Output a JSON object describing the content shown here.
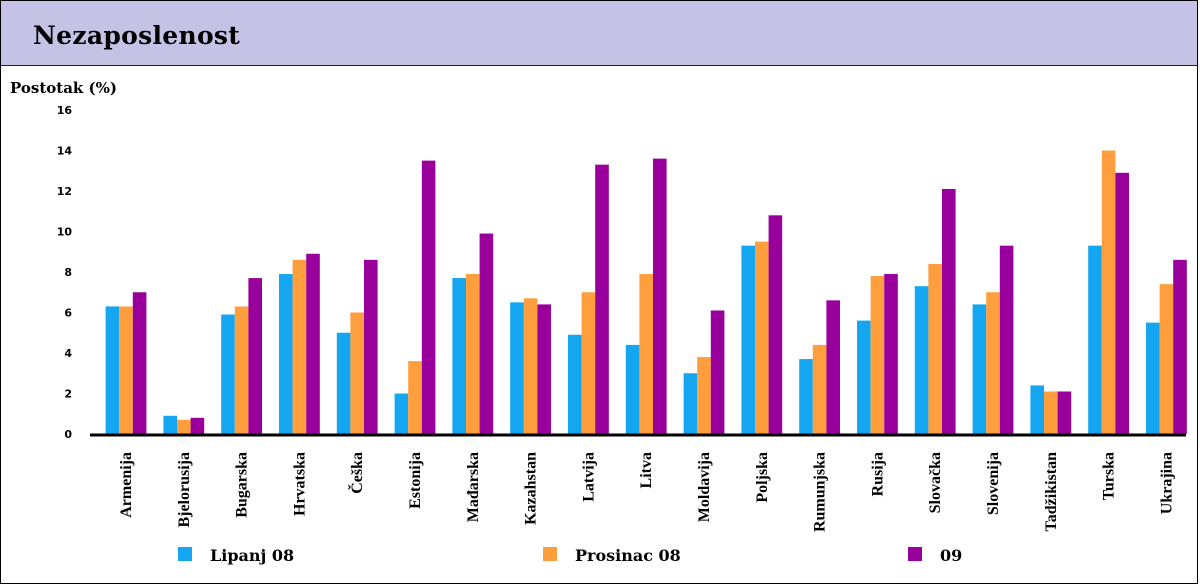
{
  "title": "Nezaposlenost",
  "colors": {
    "header_bg": "#c6c2e6",
    "series": [
      "#14a6f1",
      "#ff9e3c",
      "#99009b"
    ]
  },
  "chart_data": {
    "type": "bar",
    "title": "Nezaposlenost",
    "ylabel": "Postotak (%)",
    "xlabel": "",
    "ylim": [
      0,
      16
    ],
    "yticks": [
      0,
      2,
      4,
      6,
      8,
      10,
      12,
      14,
      16
    ],
    "ytick_labels": [
      "0",
      "2",
      "4",
      "6",
      "8",
      "10",
      "12",
      "14",
      "16"
    ],
    "grid": false,
    "legend_position": "bottom",
    "categories": [
      "Armenija",
      "Bjelorusija",
      "Bugarska",
      "Hrvatska",
      "Češka",
      "Estonija",
      "Mađarska",
      "Kazahstan",
      "Latvija",
      "Litva",
      "Moldavija",
      "Poljska",
      "Rumunjska",
      "Rusija",
      "Slovačka",
      "Slovenija",
      "Tadžikistan",
      "Turska",
      "Ukrajina"
    ],
    "series": [
      {
        "name": "Lipanj 08",
        "values": [
          6.3,
          0.9,
          5.9,
          7.9,
          5.0,
          2.0,
          7.7,
          6.5,
          4.9,
          4.4,
          3.0,
          9.3,
          3.7,
          5.6,
          7.3,
          6.4,
          2.4,
          9.3,
          5.5
        ]
      },
      {
        "name": "Prosinac 08",
        "values": [
          6.3,
          0.7,
          6.3,
          8.6,
          6.0,
          3.6,
          7.9,
          6.7,
          7.0,
          7.9,
          3.8,
          9.5,
          4.4,
          7.8,
          8.4,
          7.0,
          2.1,
          14.0,
          7.4
        ]
      },
      {
        "name": "09",
        "values": [
          7.0,
          0.8,
          7.7,
          8.9,
          8.6,
          13.5,
          9.9,
          6.4,
          13.3,
          13.6,
          6.1,
          10.8,
          6.6,
          7.9,
          12.1,
          9.3,
          2.1,
          12.9,
          8.6
        ]
      }
    ]
  }
}
